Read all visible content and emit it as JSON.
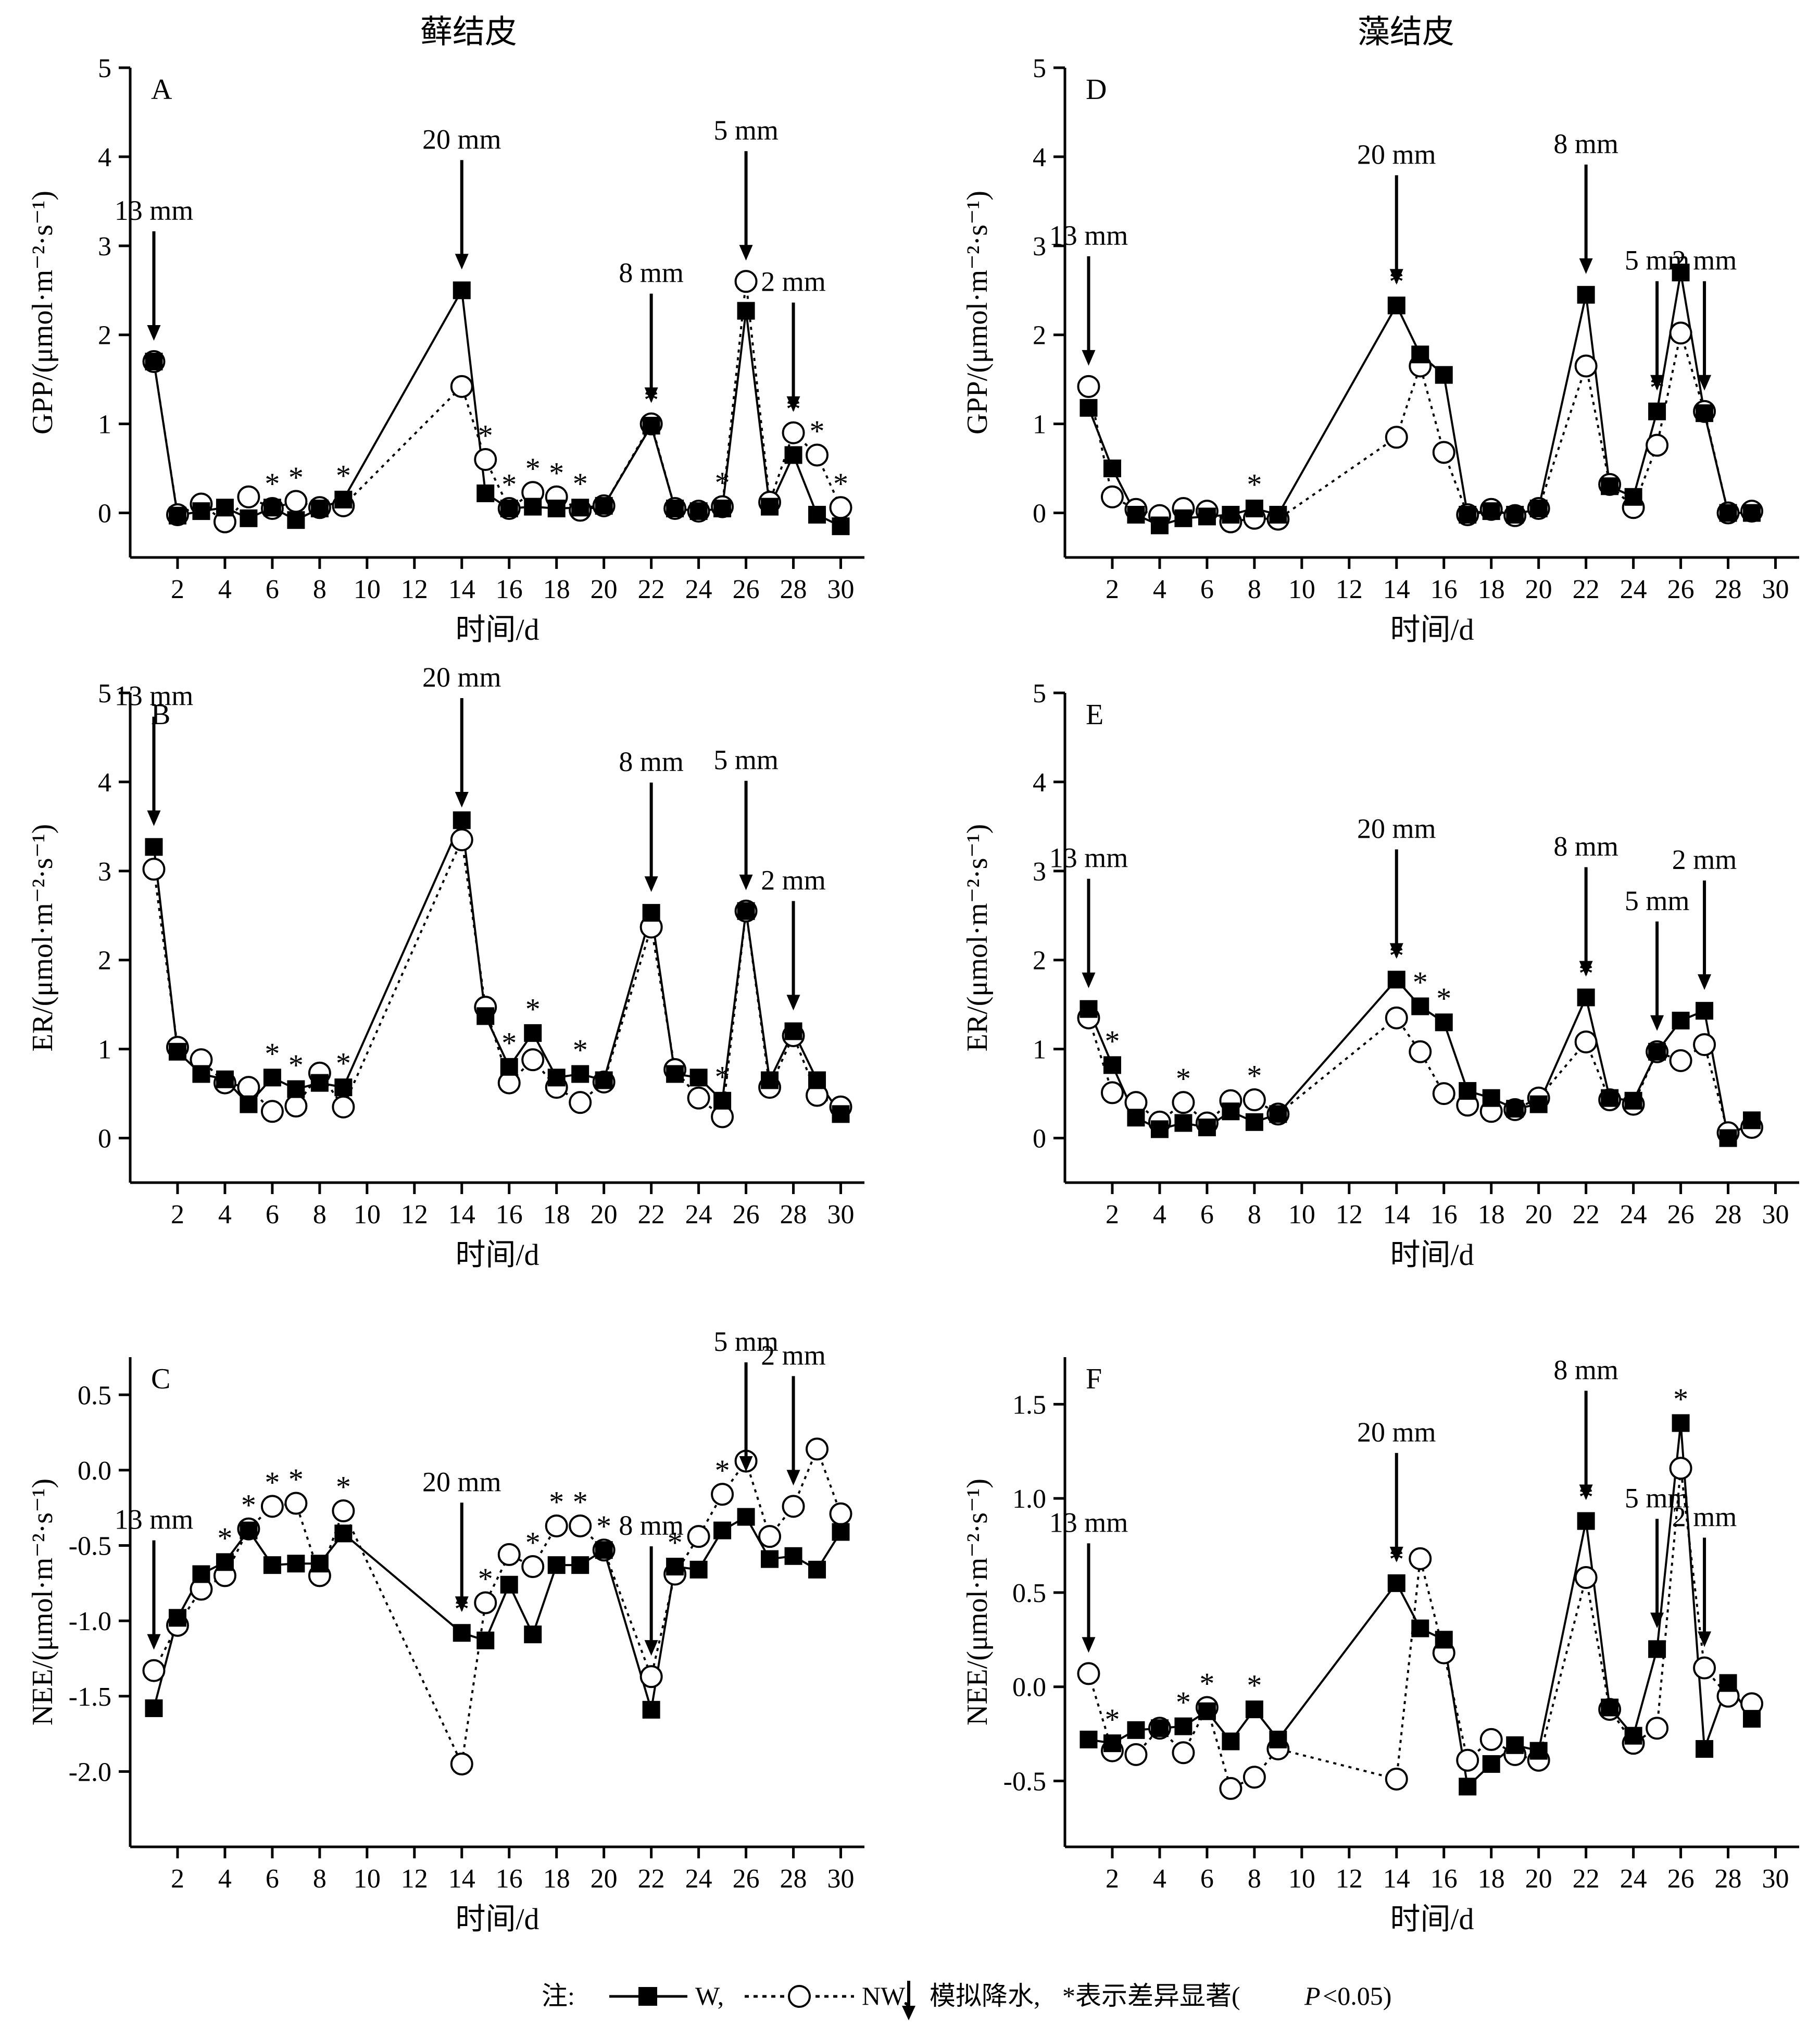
{
  "column_titles": {
    "left": "藓结皮",
    "right": "藻结皮"
  },
  "legend": {
    "prefix": "注:",
    "w_label": "W,",
    "nw_label": "NW,",
    "rain_label": "模拟降水, ",
    "star": "*",
    "sig_text": " 表示差异显著(",
    "p_text": "P",
    "p_value": "<0.05)"
  },
  "chart_data": [
    {
      "id": "A",
      "type": "line",
      "panel_label": "A",
      "ylabel": "GPP/(μmol·m⁻²·s⁻¹)",
      "xlabel": "时间/d",
      "ylim": [
        -0.5,
        5
      ],
      "yticks": [
        0,
        1,
        2,
        3,
        4,
        5
      ],
      "ytick_labels": [
        "0",
        "1",
        "2",
        "3",
        "4",
        "5"
      ],
      "xlim": [
        0,
        31
      ],
      "xticks": [
        2,
        4,
        6,
        8,
        10,
        12,
        14,
        16,
        18,
        20,
        22,
        24,
        26,
        28,
        30
      ],
      "series": [
        {
          "name": "W",
          "marker": "filled-square",
          "line": "solid",
          "x": [
            1,
            2,
            3,
            4,
            5,
            6,
            7,
            8,
            9,
            14,
            15,
            16,
            17,
            18,
            19,
            20,
            22,
            23,
            24,
            25,
            26,
            27,
            28,
            29,
            30
          ],
          "y": [
            1.7,
            -0.03,
            0.02,
            0.06,
            -0.06,
            0.06,
            -0.08,
            0.05,
            0.15,
            2.5,
            0.22,
            0.05,
            0.07,
            0.05,
            0.06,
            0.08,
            0.98,
            0.05,
            0.02,
            0.05,
            2.27,
            0.07,
            0.65,
            -0.02,
            -0.15
          ]
        },
        {
          "name": "NW",
          "marker": "open-circle",
          "line": "dotted",
          "x": [
            1,
            2,
            3,
            4,
            5,
            6,
            7,
            8,
            9,
            14,
            15,
            16,
            17,
            18,
            19,
            20,
            22,
            23,
            24,
            25,
            26,
            27,
            28,
            29,
            30
          ],
          "y": [
            1.7,
            -0.02,
            0.1,
            -0.1,
            0.18,
            0.05,
            0.13,
            0.06,
            0.08,
            1.42,
            0.6,
            0.05,
            0.23,
            0.18,
            0.03,
            0.08,
            1.0,
            0.05,
            0.02,
            0.07,
            2.6,
            0.12,
            0.9,
            0.65,
            0.06
          ]
        }
      ],
      "significant_days": [
        6,
        7,
        9,
        15,
        16,
        17,
        18,
        19,
        22,
        25,
        28,
        29,
        30
      ],
      "rain_events": [
        {
          "day": 1,
          "label": "13 mm"
        },
        {
          "day": 14,
          "label": "20 mm"
        },
        {
          "day": 22,
          "label": "8 mm"
        },
        {
          "day": 26,
          "label": "5 mm"
        },
        {
          "day": 28,
          "label": "2 mm"
        }
      ]
    },
    {
      "id": "B",
      "type": "line",
      "panel_label": "B",
      "ylabel": "ER/(μmol·m⁻²·s⁻¹)",
      "xlabel": "时间/d",
      "ylim": [
        -0.5,
        5
      ],
      "yticks": [
        0,
        1,
        2,
        3,
        4,
        5
      ],
      "ytick_labels": [
        "0",
        "1",
        "2",
        "3",
        "4",
        "5"
      ],
      "xlim": [
        0,
        31
      ],
      "xticks": [
        2,
        4,
        6,
        8,
        10,
        12,
        14,
        16,
        18,
        20,
        22,
        24,
        26,
        28,
        30
      ],
      "series": [
        {
          "name": "W",
          "marker": "filled-square",
          "line": "solid",
          "x": [
            1,
            2,
            3,
            4,
            5,
            6,
            7,
            8,
            9,
            14,
            15,
            16,
            17,
            18,
            19,
            20,
            22,
            23,
            24,
            25,
            26,
            27,
            28,
            29,
            30
          ],
          "y": [
            3.27,
            0.97,
            0.72,
            0.66,
            0.38,
            0.68,
            0.55,
            0.62,
            0.57,
            3.57,
            1.37,
            0.8,
            1.18,
            0.68,
            0.72,
            0.65,
            2.53,
            0.72,
            0.68,
            0.42,
            2.55,
            0.65,
            1.2,
            0.65,
            0.27
          ]
        },
        {
          "name": "NW",
          "marker": "open-circle",
          "line": "dotted",
          "x": [
            1,
            2,
            3,
            4,
            5,
            6,
            7,
            8,
            9,
            14,
            15,
            16,
            17,
            18,
            19,
            20,
            22,
            23,
            24,
            25,
            26,
            27,
            28,
            29,
            30
          ],
          "y": [
            3.02,
            1.02,
            0.88,
            0.62,
            0.57,
            0.3,
            0.36,
            0.73,
            0.35,
            3.35,
            1.47,
            0.62,
            0.88,
            0.57,
            0.4,
            0.63,
            2.37,
            0.77,
            0.45,
            0.24,
            2.55,
            0.57,
            1.15,
            0.48,
            0.35
          ]
        }
      ],
      "significant_days": [
        6,
        7,
        9,
        16,
        17,
        19,
        25
      ],
      "rain_events": [
        {
          "day": 1,
          "label": "13 mm"
        },
        {
          "day": 14,
          "label": "20 mm"
        },
        {
          "day": 22,
          "label": "8 mm"
        },
        {
          "day": 26,
          "label": "5 mm"
        },
        {
          "day": 28,
          "label": "2 mm"
        }
      ]
    },
    {
      "id": "C",
      "type": "line",
      "panel_label": "C",
      "ylabel": "NEE/(μmol·m⁻²·s⁻¹)",
      "xlabel": "时间/d",
      "ylim": [
        -2.5,
        0.75
      ],
      "yticks": [
        -2.0,
        -1.5,
        -1.0,
        -0.5,
        0.0,
        0.5
      ],
      "ytick_labels": [
        "-2.0",
        "-1.5",
        "-1.0",
        "-0.5",
        "0.0",
        "0.5"
      ],
      "xlim": [
        0,
        31
      ],
      "xticks": [
        2,
        4,
        6,
        8,
        10,
        12,
        14,
        16,
        18,
        20,
        22,
        24,
        26,
        28,
        30
      ],
      "series": [
        {
          "name": "W",
          "marker": "filled-square",
          "line": "solid",
          "x": [
            1,
            2,
            3,
            4,
            5,
            6,
            7,
            8,
            9,
            14,
            15,
            16,
            17,
            18,
            19,
            20,
            22,
            23,
            24,
            25,
            26,
            27,
            28,
            29,
            30
          ],
          "y": [
            -1.58,
            -0.98,
            -0.69,
            -0.61,
            -0.4,
            -0.63,
            -0.62,
            -0.62,
            -0.42,
            -1.08,
            -1.13,
            -0.76,
            -1.09,
            -0.63,
            -0.63,
            -0.53,
            -1.59,
            -0.64,
            -0.66,
            -0.4,
            -0.31,
            -0.59,
            -0.57,
            -0.66,
            -0.41
          ]
        },
        {
          "name": "NW",
          "marker": "open-circle",
          "line": "dotted",
          "x": [
            1,
            2,
            3,
            4,
            5,
            6,
            7,
            8,
            9,
            14,
            15,
            16,
            17,
            18,
            19,
            20,
            22,
            23,
            24,
            25,
            26,
            27,
            28,
            29,
            30
          ],
          "y": [
            -1.33,
            -1.03,
            -0.79,
            -0.7,
            -0.39,
            -0.24,
            -0.22,
            -0.7,
            -0.27,
            -1.95,
            -0.88,
            -0.56,
            -0.64,
            -0.37,
            -0.37,
            -0.53,
            -1.37,
            -0.69,
            -0.44,
            -0.16,
            0.06,
            -0.44,
            -0.24,
            0.14,
            -0.29
          ]
        }
      ],
      "significant_days": [
        4,
        5,
        6,
        7,
        9,
        14,
        15,
        17,
        18,
        19,
        20,
        23,
        25
      ],
      "rain_events": [
        {
          "day": 1,
          "label": "13 mm"
        },
        {
          "day": 14,
          "label": "20 mm"
        },
        {
          "day": 22,
          "label": "8 mm"
        },
        {
          "day": 26,
          "label": "5 mm"
        },
        {
          "day": 28,
          "label": "2 mm"
        }
      ]
    },
    {
      "id": "D",
      "type": "line",
      "panel_label": "D",
      "ylabel": "GPP/(μmol·m⁻²·s⁻¹)",
      "xlabel": "时间/d",
      "ylim": [
        -0.5,
        5
      ],
      "yticks": [
        0,
        1,
        2,
        3,
        4,
        5
      ],
      "ytick_labels": [
        "0",
        "1",
        "2",
        "3",
        "4",
        "5"
      ],
      "xlim": [
        0,
        31
      ],
      "xticks": [
        2,
        4,
        6,
        8,
        10,
        12,
        14,
        16,
        18,
        20,
        22,
        24,
        26,
        28,
        30
      ],
      "series": [
        {
          "name": "W",
          "marker": "filled-square",
          "line": "solid",
          "x": [
            1,
            2,
            3,
            4,
            5,
            6,
            7,
            8,
            9,
            14,
            15,
            16,
            17,
            18,
            19,
            20,
            22,
            23,
            24,
            25,
            26,
            27,
            28,
            29
          ],
          "y": [
            1.18,
            0.5,
            -0.02,
            -0.14,
            -0.06,
            -0.04,
            -0.02,
            0.05,
            -0.02,
            2.33,
            1.78,
            1.55,
            -0.02,
            0.02,
            -0.02,
            0.05,
            2.45,
            0.3,
            0.18,
            1.14,
            2.7,
            1.12,
            0.0,
            0.0
          ]
        },
        {
          "name": "NW",
          "marker": "open-circle",
          "line": "dotted",
          "x": [
            1,
            2,
            3,
            4,
            5,
            6,
            7,
            8,
            9,
            14,
            15,
            16,
            17,
            18,
            19,
            20,
            22,
            23,
            24,
            25,
            26,
            27,
            28,
            29
          ],
          "y": [
            1.42,
            0.18,
            0.04,
            -0.03,
            0.05,
            0.02,
            -0.1,
            -0.06,
            -0.07,
            0.85,
            1.65,
            0.68,
            -0.02,
            0.04,
            -0.03,
            0.05,
            1.65,
            0.32,
            0.06,
            0.76,
            2.02,
            1.14,
            0.0,
            0.02
          ]
        }
      ],
      "significant_days": [
        8,
        14,
        25
      ],
      "rain_events": [
        {
          "day": 1,
          "label": "13 mm"
        },
        {
          "day": 14,
          "label": "20 mm"
        },
        {
          "day": 22,
          "label": "8 mm"
        },
        {
          "day": 25,
          "label": "5 mm"
        },
        {
          "day": 27,
          "label": "2 mm"
        }
      ]
    },
    {
      "id": "E",
      "type": "line",
      "panel_label": "E",
      "ylabel": "ER/(μmol·m⁻²·s⁻¹)",
      "xlabel": "时间/d",
      "ylim": [
        -0.5,
        5
      ],
      "yticks": [
        0,
        1,
        2,
        3,
        4,
        5
      ],
      "ytick_labels": [
        "0",
        "1",
        "2",
        "3",
        "4",
        "5"
      ],
      "xlim": [
        0,
        31
      ],
      "xticks": [
        2,
        4,
        6,
        8,
        10,
        12,
        14,
        16,
        18,
        20,
        22,
        24,
        26,
        28,
        30
      ],
      "series": [
        {
          "name": "W",
          "marker": "filled-square",
          "line": "solid",
          "x": [
            1,
            2,
            3,
            4,
            5,
            6,
            7,
            8,
            9,
            14,
            15,
            16,
            17,
            18,
            19,
            20,
            22,
            23,
            24,
            25,
            26,
            27,
            28,
            29
          ],
          "y": [
            1.45,
            0.82,
            0.23,
            0.1,
            0.17,
            0.12,
            0.3,
            0.18,
            0.27,
            1.78,
            1.48,
            1.3,
            0.53,
            0.45,
            0.33,
            0.38,
            1.58,
            0.45,
            0.42,
            0.97,
            1.32,
            1.43,
            0.0,
            0.2
          ]
        },
        {
          "name": "NW",
          "marker": "open-circle",
          "line": "dotted",
          "x": [
            1,
            2,
            3,
            4,
            5,
            6,
            7,
            8,
            9,
            14,
            15,
            16,
            17,
            18,
            19,
            20,
            22,
            23,
            24,
            25,
            26,
            27,
            28,
            29
          ],
          "y": [
            1.35,
            0.51,
            0.4,
            0.18,
            0.4,
            0.17,
            0.42,
            0.43,
            0.27,
            1.35,
            0.97,
            0.5,
            0.37,
            0.3,
            0.32,
            0.45,
            1.08,
            0.43,
            0.38,
            0.97,
            0.87,
            1.05,
            0.06,
            0.12
          ]
        }
      ],
      "significant_days": [
        2,
        5,
        8,
        14,
        15,
        16,
        22
      ],
      "rain_events": [
        {
          "day": 1,
          "label": "13 mm"
        },
        {
          "day": 14,
          "label": "20 mm"
        },
        {
          "day": 22,
          "label": "8 mm"
        },
        {
          "day": 25,
          "label": "5 mm"
        },
        {
          "day": 27,
          "label": "2 mm"
        }
      ]
    },
    {
      "id": "F",
      "type": "line",
      "panel_label": "F",
      "ylabel": "NEE/(μmol·m⁻²·s⁻¹)",
      "xlabel": "时间/d",
      "ylim": [
        -0.85,
        1.75
      ],
      "yticks": [
        -0.5,
        0.0,
        0.5,
        1.0,
        1.5
      ],
      "ytick_labels": [
        "-0.5",
        "0.0",
        "0.5",
        "1.0",
        "1.5"
      ],
      "xlim": [
        0,
        31
      ],
      "xticks": [
        2,
        4,
        6,
        8,
        10,
        12,
        14,
        16,
        18,
        20,
        22,
        24,
        26,
        28,
        30
      ],
      "series": [
        {
          "name": "W",
          "marker": "filled-square",
          "line": "solid",
          "x": [
            1,
            2,
            3,
            4,
            5,
            6,
            7,
            8,
            9,
            14,
            15,
            16,
            17,
            18,
            19,
            20,
            22,
            23,
            24,
            25,
            26,
            27,
            28,
            29
          ],
          "y": [
            -0.28,
            -0.3,
            -0.23,
            -0.22,
            -0.21,
            -0.13,
            -0.29,
            -0.12,
            -0.28,
            0.55,
            0.31,
            0.25,
            -0.53,
            -0.41,
            -0.31,
            -0.34,
            0.88,
            -0.11,
            -0.26,
            0.2,
            1.4,
            -0.33,
            0.02,
            -0.17
          ]
        },
        {
          "name": "NW",
          "marker": "open-circle",
          "line": "dotted",
          "x": [
            1,
            2,
            3,
            4,
            5,
            6,
            7,
            8,
            9,
            14,
            15,
            16,
            17,
            18,
            19,
            20,
            22,
            23,
            24,
            25,
            26,
            27,
            28,
            29
          ],
          "y": [
            0.07,
            -0.34,
            -0.36,
            -0.22,
            -0.35,
            -0.11,
            -0.54,
            -0.48,
            -0.33,
            -0.49,
            0.68,
            0.18,
            -0.39,
            -0.28,
            -0.36,
            -0.39,
            0.58,
            -0.12,
            -0.3,
            -0.22,
            1.16,
            0.1,
            -0.05,
            -0.09
          ]
        }
      ],
      "significant_days": [
        2,
        5,
        6,
        8,
        14,
        22,
        26
      ],
      "rain_events": [
        {
          "day": 1,
          "label": "13 mm"
        },
        {
          "day": 14,
          "label": "20 mm"
        },
        {
          "day": 22,
          "label": "8 mm"
        },
        {
          "day": 25,
          "label": "5 mm"
        },
        {
          "day": 27,
          "label": "2 mm"
        }
      ]
    }
  ]
}
